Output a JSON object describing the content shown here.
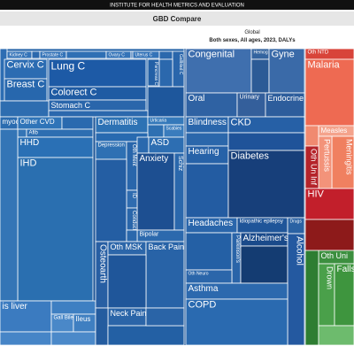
{
  "header": {
    "institute": "INSTITUTE FOR HEALTH METRICS AND EVALUATION",
    "app_title": "GBD Compare",
    "location": "Global",
    "subtitle": "Both sexes, All ages, 2023, DALYs"
  },
  "tiles": [
    {
      "label": "Kidney C"
    },
    {
      "label": "Prostate C"
    },
    {
      "label": "Ovary C"
    },
    {
      "label": "Uterus C"
    },
    {
      "label": "Gallblad C"
    },
    {
      "label": "Cervix C"
    },
    {
      "label": "Lung C"
    },
    {
      "label": "Breast C"
    },
    {
      "label": "Colorect C"
    },
    {
      "label": "Stomach C"
    },
    {
      "label": "Pancreas C"
    },
    {
      "label": "Congenital"
    },
    {
      "label": "Hemog"
    },
    {
      "label": "Gyne"
    },
    {
      "label": "Oral"
    },
    {
      "label": "Urinary"
    },
    {
      "label": "Endocrine"
    },
    {
      "label": "Oth NTD"
    },
    {
      "label": "Malaria"
    },
    {
      "label": "Measles"
    },
    {
      "label": "Meningitis"
    },
    {
      "label": "Pertussis"
    },
    {
      "label": "Oth Un Inf"
    },
    {
      "label": "HIV"
    },
    {
      "label": "Oth Uni"
    },
    {
      "label": "Drown"
    },
    {
      "label": "Falls"
    },
    {
      "label": "myoc"
    },
    {
      "label": "Other CVD"
    },
    {
      "label": "Afib"
    },
    {
      "label": "HHD"
    },
    {
      "label": "IHD"
    },
    {
      "label": "is liver"
    },
    {
      "label": "Gall Bile"
    },
    {
      "label": "Ileus"
    },
    {
      "label": "Dermatitis"
    },
    {
      "label": "Urticaria"
    },
    {
      "label": "Scabies"
    },
    {
      "label": "Depression"
    },
    {
      "label": "Oth Ment"
    },
    {
      "label": "ASD"
    },
    {
      "label": "Anxiety"
    },
    {
      "label": "Schiz"
    },
    {
      "label": "ID"
    },
    {
      "label": "Conduct"
    },
    {
      "label": "Bipolar"
    },
    {
      "label": "Osteoarth"
    },
    {
      "label": "Oth MSK"
    },
    {
      "label": "Back Pain"
    },
    {
      "label": "Neck Pain"
    },
    {
      "label": "Blindness"
    },
    {
      "label": "CKD"
    },
    {
      "label": "Hearing"
    },
    {
      "label": "Diabetes"
    },
    {
      "label": "Headaches"
    },
    {
      "label": "Idiopathic epilepsy"
    },
    {
      "label": "Drugs"
    },
    {
      "label": "Parkinson's"
    },
    {
      "label": "Alzheimer's"
    },
    {
      "label": "Oth Neuro"
    },
    {
      "label": "Alcohol"
    },
    {
      "label": "Asthma"
    },
    {
      "label": "COPD"
    }
  ]
}
